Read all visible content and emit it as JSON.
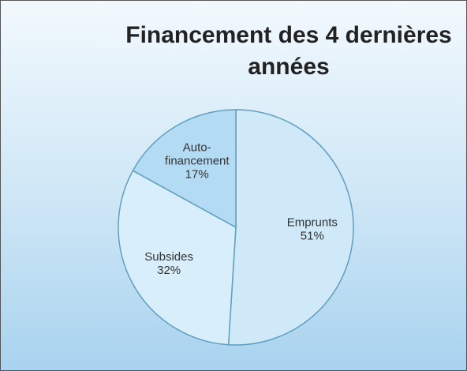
{
  "chart_data": {
    "type": "pie",
    "title": "Financement des 4 dernières années",
    "categories": [
      "Emprunts",
      "Subsides",
      "Auto-financement"
    ],
    "values": [
      51,
      32,
      17
    ],
    "value_labels": [
      "51%",
      "32%",
      "17%"
    ],
    "colors": [
      "#cfe9f9",
      "#d8eefa",
      "#b3dbf3"
    ]
  }
}
